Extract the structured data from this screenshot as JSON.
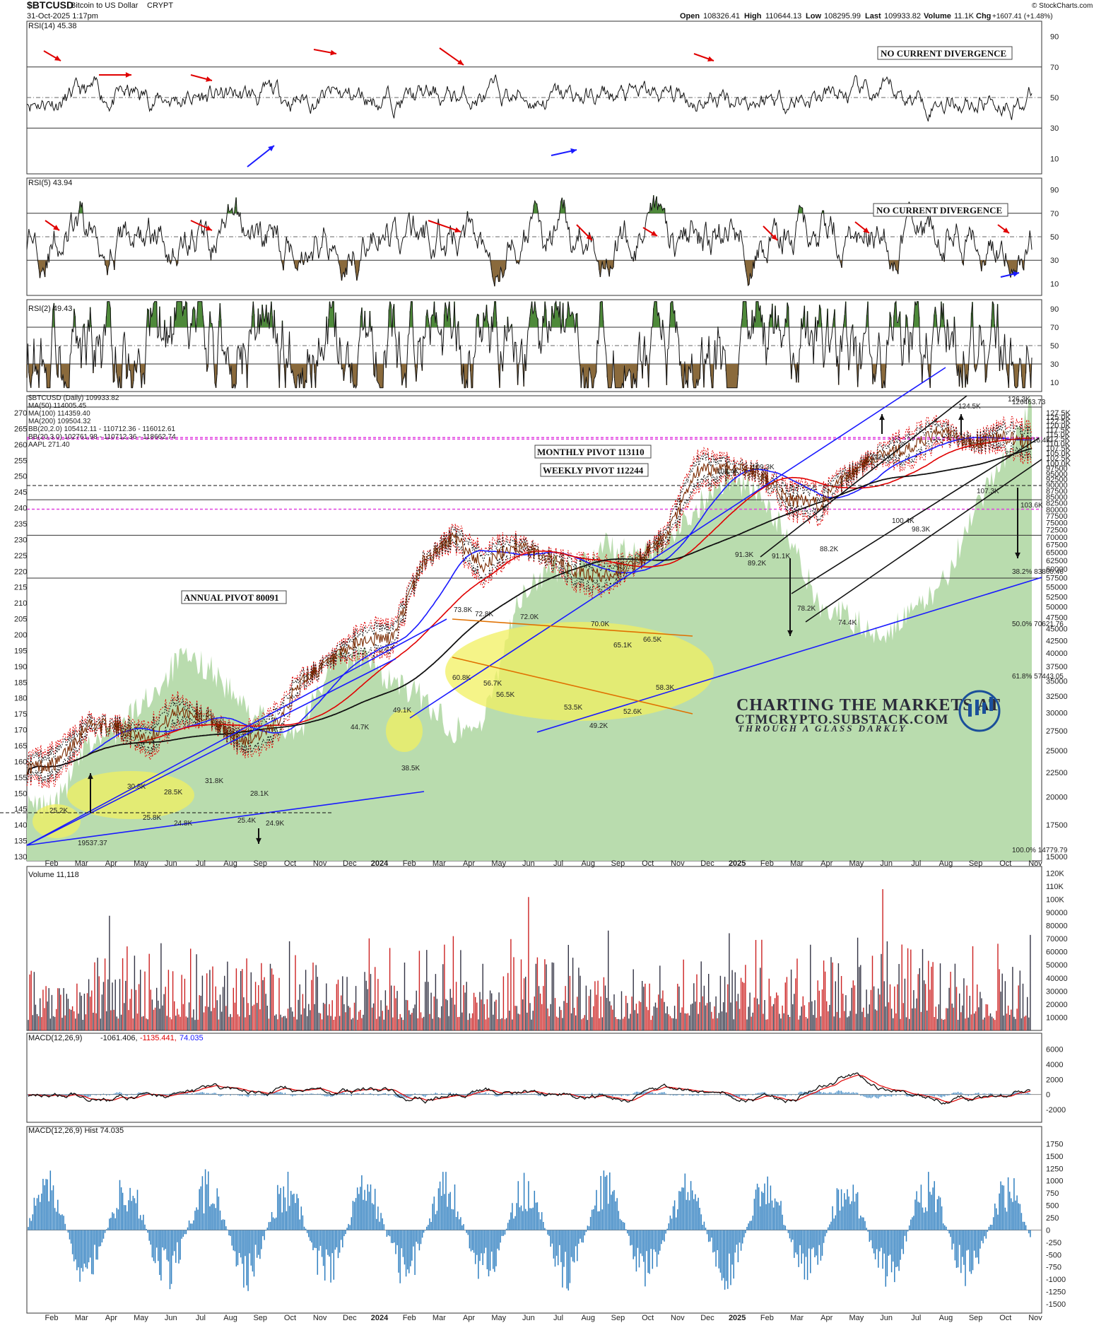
{
  "header": {
    "symbol": "$BTCUSD",
    "name": "Bitcoin to US Dollar",
    "exchange": "CRYPT",
    "date": "31-Oct-2025 1:17pm",
    "open_label": "Open",
    "open": "108326.41",
    "high_label": "High",
    "high": "110644.13",
    "low_label": "Low",
    "low": "108295.99",
    "last_label": "Last",
    "last": "109933.82",
    "volume_label": "Volume",
    "volume": "11.1K",
    "chg_label": "Chg",
    "chg": "+1607.41 (+1.48%)",
    "credit": "© StockCharts.com"
  },
  "colors": {
    "green_fill": "#b9dcae",
    "overbought": "#4e8a3a",
    "oversold": "#8a6a3c",
    "macd_hist": "#2f7fc0",
    "blue": "#1a1aff",
    "red": "#e00000",
    "pivot": "#e040e0"
  },
  "panels": {
    "rsi14": {
      "label": "RSI(14) 45.38",
      "ticks": [
        "90",
        "70",
        "50",
        "30",
        "10"
      ],
      "note": "NO CURRENT DIVERGENCE"
    },
    "rsi5": {
      "label": "RSI(5) 43.94",
      "ticks": [
        "90",
        "70",
        "50",
        "30",
        "10"
      ],
      "note": "NO CURRENT DIVERGENCE"
    },
    "rsi2": {
      "label": "RSI(2) 49.43",
      "ticks": [
        "90",
        "70",
        "50",
        "30",
        "10"
      ]
    },
    "price": {
      "legend": [
        {
          "text": "$BTCUSD (Daily) 109933.82",
          "color": "#111111"
        },
        {
          "text": "MA(50) 114005.45",
          "color": "#1a1aff"
        },
        {
          "text": "MA(100) 114359.40",
          "color": "#e00000"
        },
        {
          "text": "MA(200) 109504.32",
          "color": "#111111"
        },
        {
          "text": "BB(20,2.0) 105412.11 - 110712.36 - 116012.61",
          "color": "#111111"
        },
        {
          "text": "BB(20,3.0) 102761.98 - 110712.36 - 118662.74",
          "color": "#e00000"
        },
        {
          "text": "AAPL 271.40",
          "color": "#4e8a3a"
        }
      ],
      "left_ticks": [
        "270",
        "265",
        "260",
        "255",
        "250",
        "245",
        "240",
        "235",
        "230",
        "225",
        "220",
        "215",
        "210",
        "205",
        "200",
        "195",
        "190",
        "185",
        "180",
        "175",
        "170",
        "165",
        "160",
        "155",
        "150",
        "145",
        "140",
        "135",
        "130"
      ],
      "right_ticks": [
        "127.5K",
        "125.0K",
        "122.5K",
        "120.0K",
        "117.5K",
        "115.0K",
        "112.5K",
        "110.0K",
        "107.5K",
        "105.0K",
        "102.5K",
        "100.0K",
        "97500",
        "95000",
        "92500",
        "90000",
        "87500",
        "85000",
        "82500",
        "80000",
        "77500",
        "75000",
        "72500",
        "70000",
        "67500",
        "65000",
        "62500",
        "60000",
        "57500",
        "55000",
        "52500",
        "50000",
        "47500",
        "45000",
        "42500",
        "40000",
        "37500",
        "35000",
        "32500",
        "30000",
        "27500",
        "25000",
        "22500",
        "20000",
        "17500",
        "15000"
      ],
      "fib": [
        {
          "text": "38.2% 83800.46"
        },
        {
          "text": "50.0% 70621.76"
        },
        {
          "text": "61.8% 57443.05"
        },
        {
          "text": "100.0% 14779.79"
        },
        {
          "text": "126463.73"
        }
      ],
      "pivots": {
        "monthly": "MONTHLY PIVOT 113110",
        "weekly": "WEEKLY PIVOT 112244",
        "annual": "ANNUAL PIVOT 80091"
      },
      "point_labels": [
        "73.8K",
        "72.8K",
        "72.0K",
        "70.0K",
        "66.5K",
        "65.1K",
        "60.8K",
        "56.7K",
        "56.5K",
        "53.5K",
        "52.6K",
        "49.2K",
        "58.3K",
        "49.1K",
        "38.5K",
        "44.7K",
        "31.8K",
        "30.8K",
        "28.5K",
        "25.8K",
        "24.8K",
        "28.1K",
        "25.4K",
        "24.9K",
        "25.2K",
        "19537.37",
        "108.4K",
        "109.3K",
        "91.3K",
        "89.2K",
        "91.1K",
        "88.2K",
        "78.2K",
        "74.4K",
        "112.0K",
        "100.4K",
        "98.3K",
        "124.5K",
        "126.3K",
        "116.4K",
        "107.3K",
        "103.6K"
      ],
      "watermark": {
        "line1": "CHARTING THE MARKETS AT",
        "line2": "CTMCRYPTO.SUBSTACK.COM",
        "line3": "THROUGH A GLASS DARKLY"
      }
    },
    "volume": {
      "label": "Volume 11,118",
      "ticks": [
        "120K",
        "110K",
        "100K",
        "90000",
        "80000",
        "70000",
        "60000",
        "50000",
        "40000",
        "30000",
        "20000",
        "10000"
      ]
    },
    "macd": {
      "label": "MACD(12,26,9)",
      "v1": "-1061.406,",
      "v2": "-1135.441,",
      "v3": "74.035",
      "ticks": [
        "6000",
        "4000",
        "2000",
        "0",
        "-2000"
      ]
    },
    "hist": {
      "label": "MACD(12,26,9) Hist 74.035",
      "ticks": [
        "1750",
        "1500",
        "1250",
        "1000",
        "750",
        "500",
        "250",
        "0",
        "-250",
        "-500",
        "-750",
        "-1000",
        "-1250",
        "-1500"
      ]
    }
  },
  "x_axis": [
    "Feb",
    "Mar",
    "Apr",
    "May",
    "Jun",
    "Jul",
    "Aug",
    "Sep",
    "Oct",
    "Nov",
    "Dec",
    "2024",
    "Feb",
    "Mar",
    "Apr",
    "May",
    "Jun",
    "Jul",
    "Aug",
    "Sep",
    "Oct",
    "Nov",
    "Dec",
    "2025",
    "Feb",
    "Mar",
    "Apr",
    "May",
    "Jun",
    "Jul",
    "Aug",
    "Sep",
    "Oct",
    "Nov"
  ],
  "chart_data": {
    "type": "line",
    "title": "$BTCUSD Bitcoin to US Dollar CRYPT",
    "x": [
      "2023-02",
      "2023-03",
      "2023-04",
      "2023-05",
      "2023-06",
      "2023-07",
      "2023-08",
      "2023-09",
      "2023-10",
      "2023-11",
      "2023-12",
      "2024-01",
      "2024-02",
      "2024-03",
      "2024-04",
      "2024-05",
      "2024-06",
      "2024-07",
      "2024-08",
      "2024-09",
      "2024-10",
      "2024-11",
      "2024-12",
      "2025-01",
      "2025-02",
      "2025-03",
      "2025-04",
      "2025-05",
      "2025-06",
      "2025-07",
      "2025-08",
      "2025-09",
      "2025-10",
      "2025-11"
    ],
    "y_scale": "log",
    "ylim": [
      14779.79,
      127500
    ],
    "series": [
      {
        "name": "$BTCUSD (Daily)",
        "values": [
          23000,
          23500,
          28500,
          28000,
          26500,
          30500,
          29200,
          26200,
          27500,
          35000,
          38500,
          42500,
          43000,
          62000,
          70000,
          61000,
          67500,
          64000,
          59000,
          58000,
          62000,
          70000,
          96000,
          98000,
          96000,
          84000,
          82000,
          94500,
          105000,
          107000,
          117000,
          110000,
          114000,
          109933.82
        ]
      },
      {
        "name": "AAPL",
        "values": [
          145,
          147,
          165,
          170,
          180,
          192,
          190,
          178,
          172,
          170,
          192,
          193,
          185,
          180,
          170,
          172,
          208,
          220,
          222,
          228,
          225,
          230,
          240,
          250,
          245,
          230,
          210,
          205,
          200,
          206,
          215,
          235,
          255,
          271.4
        ]
      }
    ],
    "levels": {
      "monthly_pivot": 113110,
      "weekly_pivot": 112244,
      "annual_pivot": 80091,
      "fib_38_2": 83800.46,
      "fib_50": 70621.76,
      "fib_61_8": 57443.05,
      "fib_100": 14779.79,
      "high": 126463.73
    }
  }
}
